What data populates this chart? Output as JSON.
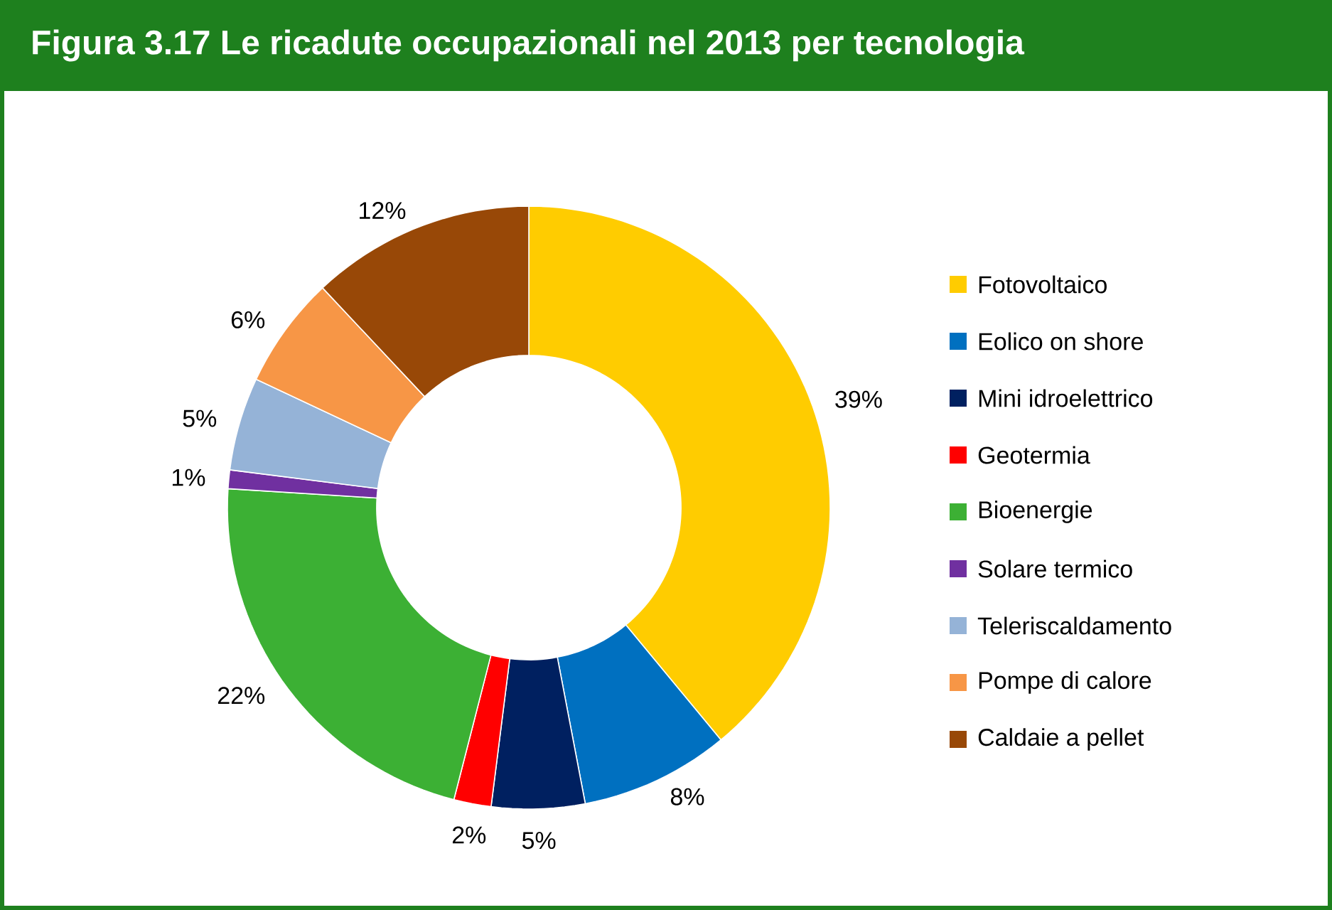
{
  "chart_data": {
    "type": "donut",
    "title": "Figura 3.17 Le ricadute occupazionali nel 2013 per tecnologia",
    "categories": [
      "Fotovoltaico",
      "Eolico on shore",
      "Mini idroelettrico",
      "Geotermia",
      "Bioenergie",
      "Solare termico",
      "Teleriscaldamento",
      "Pompe di calore",
      "Caldaie a pellet"
    ],
    "values": [
      39,
      8,
      5,
      2,
      22,
      1,
      5,
      6,
      12
    ],
    "value_labels": [
      "39%",
      "8%",
      "5%",
      "2%",
      "22%",
      "1%",
      "5%",
      "6%",
      "12%"
    ],
    "colors": [
      "#ffcc00",
      "#0070c0",
      "#002060",
      "#ff0000",
      "#3cb034",
      "#7030a0",
      "#95b3d7",
      "#f79646",
      "#984807"
    ],
    "legend": "right"
  }
}
